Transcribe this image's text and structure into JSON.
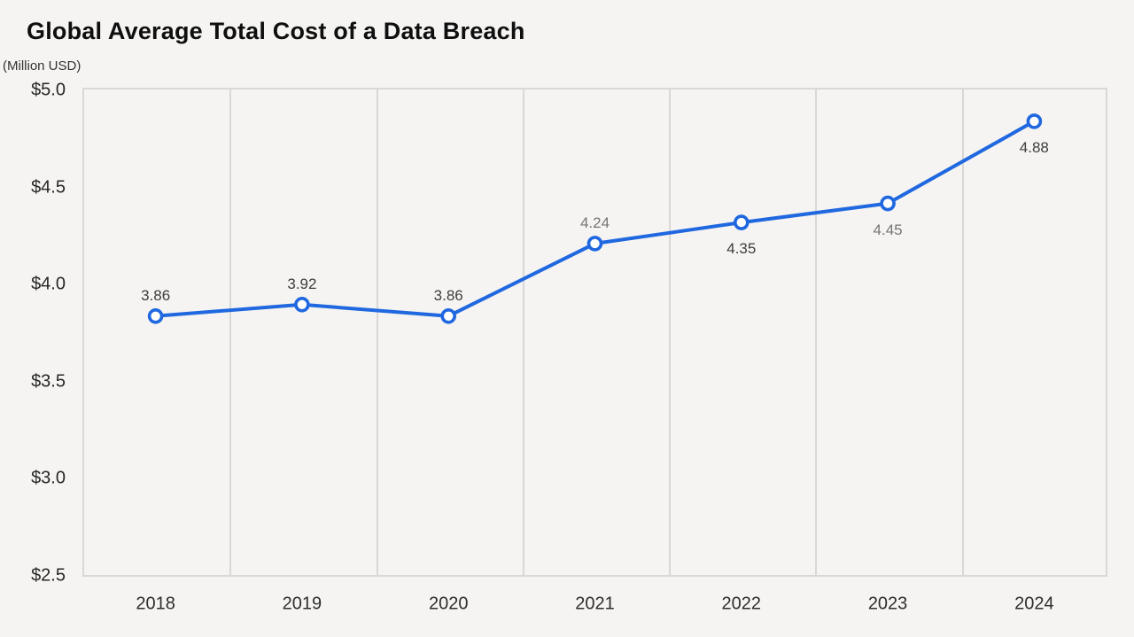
{
  "page": {
    "background_color": "#f5f4f2"
  },
  "chart_data": {
    "type": "line",
    "title": "Global Average Total Cost of a Data Breach",
    "subtitle": "(Million USD)",
    "xlabel": "",
    "ylabel": "(Million USD)",
    "categories": [
      "2018",
      "2019",
      "2020",
      "2021",
      "2022",
      "2023",
      "2024"
    ],
    "values": [
      3.86,
      3.92,
      3.86,
      4.24,
      4.35,
      4.45,
      4.88
    ],
    "point_labels": [
      "3.86",
      "3.92",
      "3.86",
      "4.24",
      "4.35",
      "4.45",
      "4.88"
    ],
    "point_label_positions": [
      "above",
      "above",
      "above",
      "above",
      "below",
      "below",
      "below"
    ],
    "point_label_colors": [
      "#3d3d3d",
      "#3d3d3d",
      "#3d3d3d",
      "#757575",
      "#3d3d3d",
      "#757575",
      "#3d3d3d"
    ],
    "y_tick_labels": [
      "$5.0",
      "$4.5",
      "$4.0",
      "$3.5",
      "$3.0",
      "$2.5"
    ],
    "y_tick_values": [
      5.0,
      4.5,
      4.0,
      3.5,
      3.0,
      2.5
    ],
    "ylim": [
      2.5,
      5.0
    ],
    "grid": "vertical-only",
    "legend": "none",
    "colors": {
      "line": "#2068e0",
      "marker_fill": "#ffffff",
      "marker_stroke": "#2068e0",
      "gridline": "#d9d8d6",
      "plot_border": "#d9d8d6",
      "background": "#f5f4f2",
      "title_text": "#0f0f0f",
      "axis_text": "#2d2d2d",
      "data_label_dark": "#3d3d3d",
      "data_label_gray": "#757575"
    }
  }
}
